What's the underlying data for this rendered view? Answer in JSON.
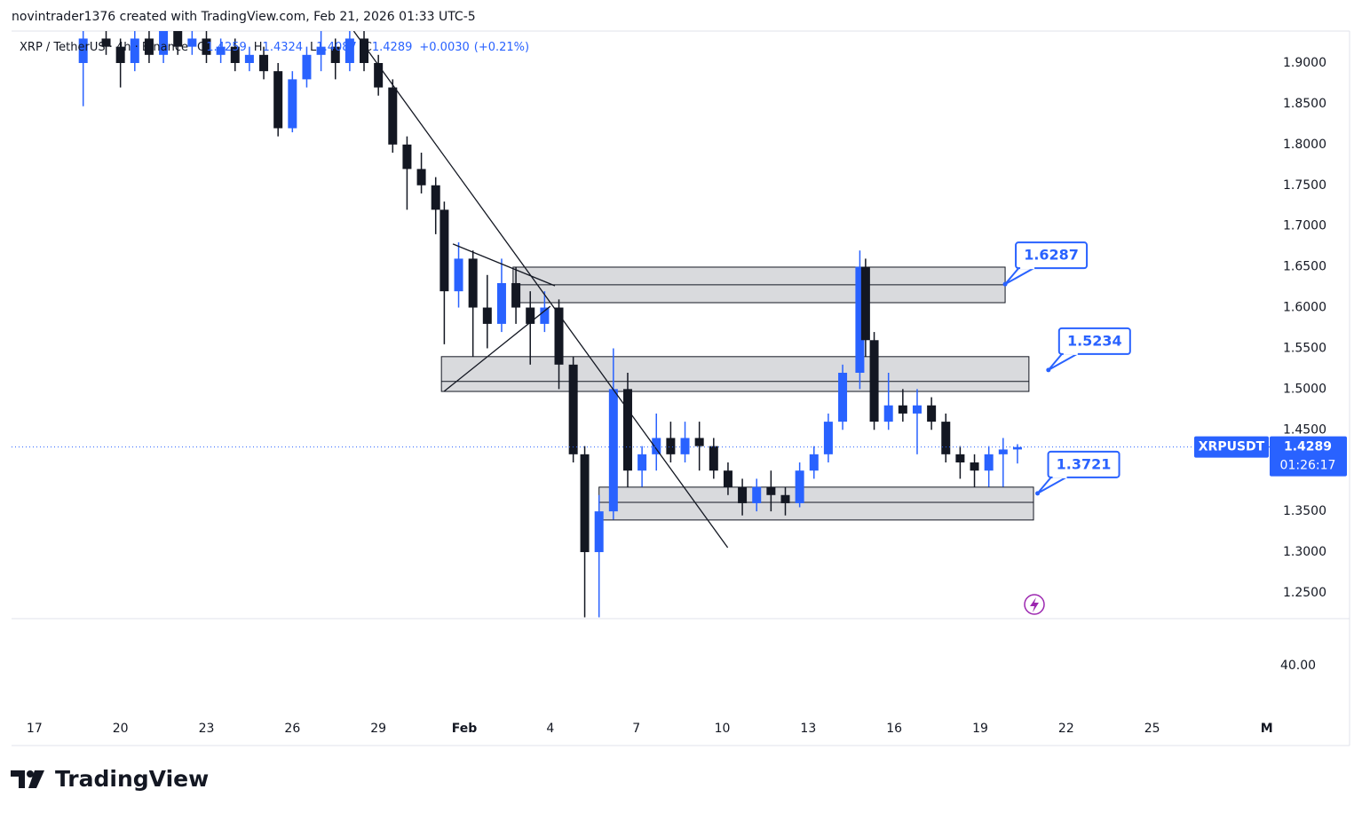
{
  "header": {
    "attribution": "novintrader1376 created with TradingView.com, Feb 21, 2026 01:33 UTC-5"
  },
  "chart_data": {
    "type": "candlestick",
    "symbol": "XRP / TetherUS · 4h · Binance",
    "ohlc_labels": [
      "O",
      "H",
      "L",
      "C"
    ],
    "change": "+0.0030",
    "change_pct": "(+0.21%)",
    "up_color": "#2962ff",
    "down_color": "#131722",
    "candles": [
      {
        "x": 18.7,
        "o": 1.9,
        "h": 1.95,
        "l": 1.847,
        "c": 1.93
      },
      {
        "x": 19.5,
        "o": 1.93,
        "h": 1.95,
        "l": 1.91,
        "c": 1.92
      },
      {
        "x": 20.0,
        "o": 1.92,
        "h": 1.93,
        "l": 1.87,
        "c": 1.9
      },
      {
        "x": 20.5,
        "o": 1.9,
        "h": 1.95,
        "l": 1.89,
        "c": 1.93
      },
      {
        "x": 21.0,
        "o": 1.93,
        "h": 1.95,
        "l": 1.9,
        "c": 1.91
      },
      {
        "x": 21.5,
        "o": 1.91,
        "h": 1.95,
        "l": 1.9,
        "c": 1.94
      },
      {
        "x": 22.0,
        "o": 1.94,
        "h": 1.95,
        "l": 1.91,
        "c": 1.92
      },
      {
        "x": 22.5,
        "o": 1.92,
        "h": 1.94,
        "l": 1.91,
        "c": 1.93
      },
      {
        "x": 23.0,
        "o": 1.93,
        "h": 1.94,
        "l": 1.9,
        "c": 1.91
      },
      {
        "x": 23.5,
        "o": 1.91,
        "h": 1.93,
        "l": 1.9,
        "c": 1.92
      },
      {
        "x": 24.0,
        "o": 1.92,
        "h": 1.93,
        "l": 1.89,
        "c": 1.9
      },
      {
        "x": 24.5,
        "o": 1.9,
        "h": 1.92,
        "l": 1.89,
        "c": 1.91
      },
      {
        "x": 25.0,
        "o": 1.91,
        "h": 1.92,
        "l": 1.88,
        "c": 1.89
      },
      {
        "x": 25.5,
        "o": 1.89,
        "h": 1.9,
        "l": 1.81,
        "c": 1.82
      },
      {
        "x": 26.0,
        "o": 1.82,
        "h": 1.89,
        "l": 1.815,
        "c": 1.88
      },
      {
        "x": 26.5,
        "o": 1.88,
        "h": 1.92,
        "l": 1.87,
        "c": 1.91
      },
      {
        "x": 27.0,
        "o": 1.91,
        "h": 1.94,
        "l": 1.89,
        "c": 1.92
      },
      {
        "x": 27.5,
        "o": 1.92,
        "h": 1.93,
        "l": 1.88,
        "c": 1.9
      },
      {
        "x": 28.0,
        "o": 1.9,
        "h": 1.94,
        "l": 1.89,
        "c": 1.93
      },
      {
        "x": 28.5,
        "o": 1.93,
        "h": 1.94,
        "l": 1.89,
        "c": 1.9
      },
      {
        "x": 29.0,
        "o": 1.9,
        "h": 1.91,
        "l": 1.86,
        "c": 1.87
      },
      {
        "x": 29.5,
        "o": 1.87,
        "h": 1.88,
        "l": 1.79,
        "c": 1.8
      },
      {
        "x": 30.0,
        "o": 1.8,
        "h": 1.81,
        "l": 1.72,
        "c": 1.77
      },
      {
        "x": 30.5,
        "o": 1.77,
        "h": 1.79,
        "l": 1.74,
        "c": 1.75
      },
      {
        "x": 31.0,
        "o": 1.75,
        "h": 1.76,
        "l": 1.69,
        "c": 1.72
      },
      {
        "x": 31.3,
        "o": 1.72,
        "h": 1.73,
        "l": 1.555,
        "c": 1.62
      },
      {
        "x": 31.8,
        "o": 1.62,
        "h": 1.68,
        "l": 1.6,
        "c": 1.66
      },
      {
        "x": 32.3,
        "o": 1.66,
        "h": 1.67,
        "l": 1.54,
        "c": 1.6
      },
      {
        "x": 32.8,
        "o": 1.6,
        "h": 1.64,
        "l": 1.55,
        "c": 1.58
      },
      {
        "x": 33.3,
        "o": 1.58,
        "h": 1.66,
        "l": 1.57,
        "c": 1.63
      },
      {
        "x": 33.8,
        "o": 1.63,
        "h": 1.65,
        "l": 1.58,
        "c": 1.6
      },
      {
        "x": 34.3,
        "o": 1.6,
        "h": 1.62,
        "l": 1.53,
        "c": 1.58
      },
      {
        "x": 34.8,
        "o": 1.58,
        "h": 1.62,
        "l": 1.57,
        "c": 1.6
      },
      {
        "x": 35.3,
        "o": 1.6,
        "h": 1.61,
        "l": 1.5,
        "c": 1.53
      },
      {
        "x": 35.8,
        "o": 1.53,
        "h": 1.54,
        "l": 1.41,
        "c": 1.42
      },
      {
        "x": 36.2,
        "o": 1.42,
        "h": 1.43,
        "l": 1.22,
        "c": 1.3
      },
      {
        "x": 36.7,
        "o": 1.3,
        "h": 1.37,
        "l": 1.22,
        "c": 1.35
      },
      {
        "x": 37.2,
        "o": 1.35,
        "h": 1.55,
        "l": 1.34,
        "c": 1.5
      },
      {
        "x": 37.7,
        "o": 1.5,
        "h": 1.52,
        "l": 1.38,
        "c": 1.4
      },
      {
        "x": 38.2,
        "o": 1.4,
        "h": 1.43,
        "l": 1.38,
        "c": 1.42
      },
      {
        "x": 38.7,
        "o": 1.42,
        "h": 1.47,
        "l": 1.4,
        "c": 1.44
      },
      {
        "x": 39.2,
        "o": 1.44,
        "h": 1.46,
        "l": 1.41,
        "c": 1.42
      },
      {
        "x": 39.7,
        "o": 1.42,
        "h": 1.46,
        "l": 1.41,
        "c": 1.44
      },
      {
        "x": 40.2,
        "o": 1.44,
        "h": 1.46,
        "l": 1.4,
        "c": 1.43
      },
      {
        "x": 40.7,
        "o": 1.43,
        "h": 1.44,
        "l": 1.39,
        "c": 1.4
      },
      {
        "x": 41.2,
        "o": 1.4,
        "h": 1.41,
        "l": 1.37,
        "c": 1.38
      },
      {
        "x": 41.7,
        "o": 1.38,
        "h": 1.39,
        "l": 1.345,
        "c": 1.36
      },
      {
        "x": 42.2,
        "o": 1.36,
        "h": 1.39,
        "l": 1.35,
        "c": 1.38
      },
      {
        "x": 42.7,
        "o": 1.38,
        "h": 1.4,
        "l": 1.35,
        "c": 1.37
      },
      {
        "x": 43.2,
        "o": 1.37,
        "h": 1.38,
        "l": 1.345,
        "c": 1.36
      },
      {
        "x": 43.7,
        "o": 1.36,
        "h": 1.41,
        "l": 1.355,
        "c": 1.4
      },
      {
        "x": 44.2,
        "o": 1.4,
        "h": 1.43,
        "l": 1.39,
        "c": 1.42
      },
      {
        "x": 44.7,
        "o": 1.42,
        "h": 1.47,
        "l": 1.41,
        "c": 1.46
      },
      {
        "x": 45.2,
        "o": 1.46,
        "h": 1.53,
        "l": 1.45,
        "c": 1.52
      },
      {
        "x": 45.8,
        "o": 1.52,
        "h": 1.67,
        "l": 1.5,
        "c": 1.65
      },
      {
        "x": 46.0,
        "o": 1.65,
        "h": 1.66,
        "l": 1.54,
        "c": 1.56
      },
      {
        "x": 46.3,
        "o": 1.56,
        "h": 1.57,
        "l": 1.45,
        "c": 1.46
      },
      {
        "x": 46.8,
        "o": 1.46,
        "h": 1.52,
        "l": 1.45,
        "c": 1.48
      },
      {
        "x": 47.3,
        "o": 1.48,
        "h": 1.5,
        "l": 1.46,
        "c": 1.47
      },
      {
        "x": 47.8,
        "o": 1.47,
        "h": 1.5,
        "l": 1.42,
        "c": 1.48
      },
      {
        "x": 48.3,
        "o": 1.48,
        "h": 1.49,
        "l": 1.45,
        "c": 1.46
      },
      {
        "x": 48.8,
        "o": 1.46,
        "h": 1.47,
        "l": 1.41,
        "c": 1.42
      },
      {
        "x": 49.3,
        "o": 1.42,
        "h": 1.43,
        "l": 1.39,
        "c": 1.41
      },
      {
        "x": 49.8,
        "o": 1.41,
        "h": 1.42,
        "l": 1.38,
        "c": 1.4
      },
      {
        "x": 50.3,
        "o": 1.4,
        "h": 1.43,
        "l": 1.38,
        "c": 1.42
      },
      {
        "x": 50.8,
        "o": 1.42,
        "h": 1.44,
        "l": 1.38,
        "c": 1.4259
      },
      {
        "x": 51.3,
        "o": 1.4259,
        "h": 1.4324,
        "l": 1.4087,
        "c": 1.4289
      }
    ],
    "xlim": [
      16.2,
      60.1
    ],
    "xticks": [
      17,
      20,
      23,
      26,
      29,
      {
        "value": 32,
        "label": "Feb"
      },
      {
        "value": 35,
        "label": "4"
      },
      {
        "value": 38,
        "label": "7"
      },
      {
        "value": 41,
        "label": "10"
      },
      {
        "value": 44,
        "label": "13"
      },
      {
        "value": 47,
        "label": "16"
      },
      {
        "value": 50,
        "label": "19"
      },
      {
        "value": 53,
        "label": "22"
      },
      {
        "value": 56,
        "label": "25"
      },
      {
        "value": 60,
        "label": "M"
      }
    ],
    "ylim": [
      1.2184,
      1.9392
    ],
    "yticks": [
      {
        "value": 1.9,
        "label": "1.9000"
      },
      {
        "value": 1.85,
        "label": "1.8500"
      },
      {
        "value": 1.8,
        "label": "1.8000"
      },
      {
        "value": 1.75,
        "label": "1.7500"
      },
      {
        "value": 1.7,
        "label": "1.7000"
      },
      {
        "value": 1.65,
        "label": "1.6500"
      },
      {
        "value": 1.6,
        "label": "1.6000"
      },
      {
        "value": 1.55,
        "label": "1.5500"
      },
      {
        "value": 1.5,
        "label": "1.5000"
      },
      {
        "value": 1.45,
        "label": "1.4500"
      },
      {
        "value": 1.35,
        "label": "1.3500"
      },
      {
        "value": 1.3,
        "label": "1.3000"
      },
      {
        "value": 1.25,
        "label": "1.2500"
      }
    ],
    "zones": [
      {
        "x0": 33.7,
        "x1": 50.87,
        "top": 1.6496,
        "mid": 1.628,
        "bottom": 1.606
      },
      {
        "x0": 31.2,
        "x1": 51.7,
        "top": 1.5398,
        "mid": 1.5094,
        "bottom": 1.4971
      },
      {
        "x0": 36.7,
        "x1": 51.86,
        "top": 1.3797,
        "mid": 1.3611,
        "bottom": 1.3394
      }
    ],
    "trendlines": [
      {
        "x": [
          28.14,
          41.19
        ],
        "y": [
          1.9392,
          1.3055
        ]
      },
      {
        "x": [
          31.6,
          35.16
        ],
        "y": [
          1.678,
          1.6267
        ]
      },
      {
        "x": [
          31.29,
          35.0
        ],
        "y": [
          1.4971,
          1.6016
        ]
      }
    ],
    "callouts": [
      {
        "x": 50.87,
        "value": 1.6287
      },
      {
        "x": 52.38,
        "value": 1.5234
      },
      {
        "x": 52.0,
        "value": 1.3721
      }
    ],
    "last_price": {
      "name": "XRPUSDT",
      "countdown": "01:26:17"
    },
    "lower_pane": {
      "tick_label": "40.00"
    }
  },
  "footer": {
    "brand": "TradingView"
  }
}
